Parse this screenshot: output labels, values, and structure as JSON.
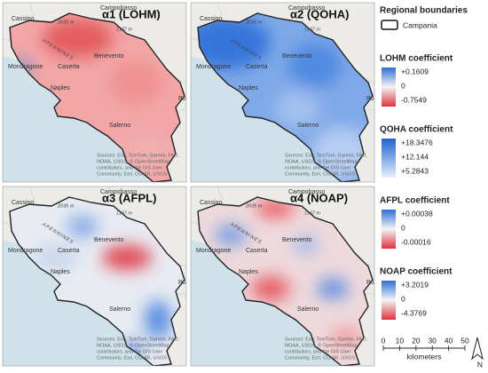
{
  "map_labels": {
    "campobasso": "Campobasso",
    "cassino": "Cassino",
    "peak1": "2035 m",
    "peak2": "1137 m",
    "apennines": "APENNINES",
    "mondragone": "Mondragone",
    "caserta": "Caserta",
    "benevento": "Benevento",
    "naples": "Naples",
    "salerno": "Salerno",
    "po": "Po"
  },
  "attribution": [
    "Sources: Esri, TomTom, Garmin, FAO,",
    "NOAA, USGS, © OpenStreetMap",
    "contributors, and the GIS User",
    "Community, Esri, CGIAR, USGS"
  ],
  "panels": [
    {
      "title": "α1 (LOHM)"
    },
    {
      "title": "α2 (QOHA)"
    },
    {
      "title": "α3 (AFPL)"
    },
    {
      "title": "α4 (NOAP)"
    }
  ],
  "legend": {
    "boundaries": {
      "title": "Regional boundaries",
      "item": "Campania"
    },
    "scales": [
      {
        "title": "LOHM coefficient",
        "labels": [
          "+0.1609",
          "0",
          "-0.7549"
        ]
      },
      {
        "title": "QOHA coefficient",
        "labels": [
          "+18.3476",
          "+12.144",
          "+5.2843"
        ]
      },
      {
        "title": "AFPL coefficient",
        "labels": [
          "+0.00038",
          "0",
          "-0.00016"
        ]
      },
      {
        "title": "NOAP coefficient",
        "labels": [
          "+3.2019",
          "0",
          "-4.3769"
        ]
      }
    ]
  },
  "scale_bar": {
    "ticks": [
      0,
      10,
      20,
      30,
      40,
      50
    ],
    "unit": "kilometers"
  },
  "north": "N"
}
